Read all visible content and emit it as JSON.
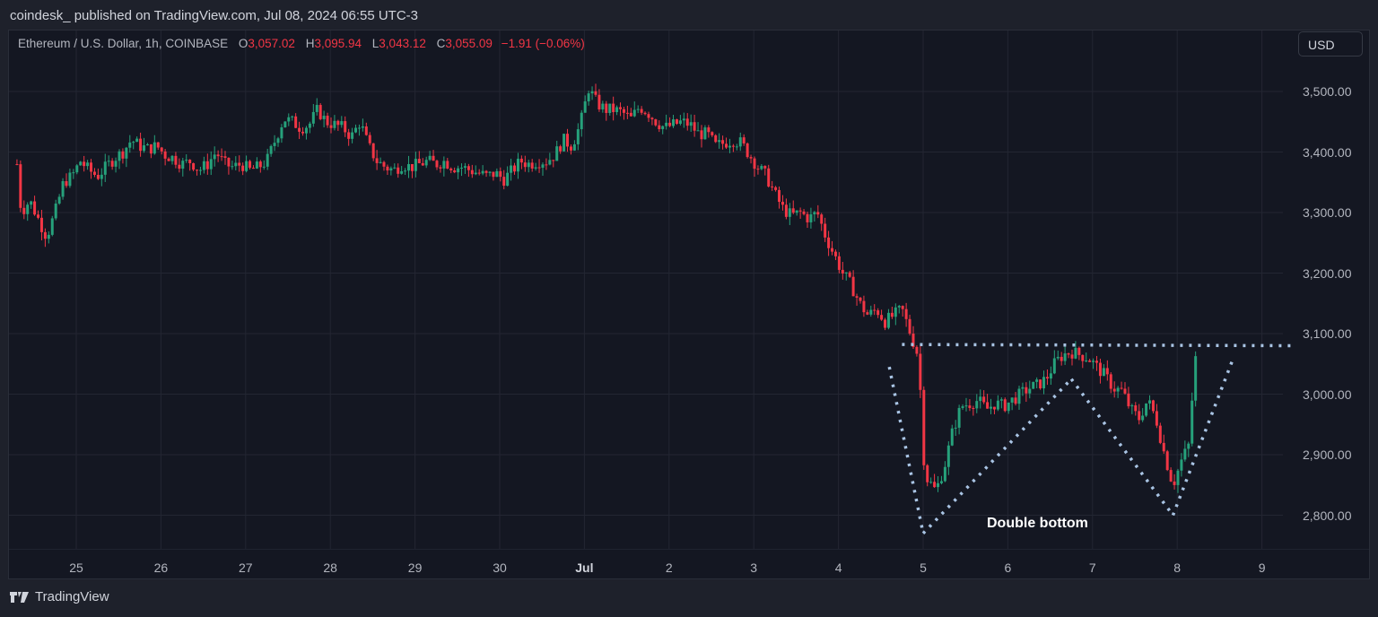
{
  "header": {
    "publish_line": "coindesk_ published on TradingView.com, Jul 08, 2024 06:55 UTC-3"
  },
  "legend": {
    "symbol": "Ethereum / U.S. Dollar, 1h, COINBASE",
    "o_label": "O",
    "o": "3,057.02",
    "h_label": "H",
    "h": "3,095.94",
    "l_label": "L",
    "l": "3,043.12",
    "c_label": "C",
    "c": "3,055.09",
    "change": "−1.91 (−0.06%)"
  },
  "currency_button": "USD",
  "footer": {
    "brand": "TradingView"
  },
  "colors": {
    "up": "#26a17b",
    "down": "#f23645",
    "grid": "#232632",
    "annotation": "#a9c4e4",
    "bg": "#141722"
  },
  "chart_data": {
    "type": "candlestick",
    "title": "Ethereum / U.S. Dollar, 1h, COINBASE",
    "xlabel": "",
    "ylabel": "USD",
    "ylim": [
      2740,
      3560
    ],
    "y_ticks": [
      "3,500.00",
      "3,400.00",
      "3,300.00",
      "3,200.00",
      "3,100.00",
      "3,000.00",
      "2,900.00",
      "2,800.00"
    ],
    "y_tick_values": [
      3500,
      3400,
      3300,
      3200,
      3100,
      3000,
      2900,
      2800
    ],
    "x_ticks": [
      {
        "label": "25",
        "day": 25
      },
      {
        "label": "26",
        "day": 26
      },
      {
        "label": "27",
        "day": 27
      },
      {
        "label": "28",
        "day": 28
      },
      {
        "label": "29",
        "day": 29
      },
      {
        "label": "30",
        "day": 30
      },
      {
        "label": "Jul",
        "day": 31,
        "bold": true
      },
      {
        "label": "2",
        "day": 32
      },
      {
        "label": "3",
        "day": 33
      },
      {
        "label": "4",
        "day": 34
      },
      {
        "label": "5",
        "day": 35
      },
      {
        "label": "6",
        "day": 36
      },
      {
        "label": "7",
        "day": 37
      },
      {
        "label": "8",
        "day": 38
      },
      {
        "label": "9",
        "day": 39
      }
    ],
    "grid": true,
    "close_path": [
      [
        24.3,
        3380
      ],
      [
        24.35,
        3300
      ],
      [
        24.45,
        3320
      ],
      [
        24.55,
        3290
      ],
      [
        24.65,
        3260
      ],
      [
        24.75,
        3300
      ],
      [
        24.85,
        3350
      ],
      [
        24.95,
        3360
      ],
      [
        25.05,
        3385
      ],
      [
        25.15,
        3370
      ],
      [
        25.25,
        3360
      ],
      [
        25.35,
        3375
      ],
      [
        25.45,
        3390
      ],
      [
        25.55,
        3400
      ],
      [
        25.65,
        3420
      ],
      [
        25.75,
        3410
      ],
      [
        25.85,
        3405
      ],
      [
        25.95,
        3410
      ],
      [
        26.05,
        3395
      ],
      [
        26.15,
        3390
      ],
      [
        26.25,
        3380
      ],
      [
        26.35,
        3385
      ],
      [
        26.45,
        3370
      ],
      [
        26.55,
        3380
      ],
      [
        26.65,
        3400
      ],
      [
        26.75,
        3380
      ],
      [
        26.85,
        3375
      ],
      [
        26.95,
        3380
      ],
      [
        27.05,
        3370
      ],
      [
        27.15,
        3375
      ],
      [
        27.25,
        3385
      ],
      [
        27.35,
        3420
      ],
      [
        27.45,
        3455
      ],
      [
        27.55,
        3450
      ],
      [
        27.65,
        3440
      ],
      [
        27.75,
        3445
      ],
      [
        27.85,
        3470
      ],
      [
        27.95,
        3450
      ],
      [
        28.05,
        3445
      ],
      [
        28.15,
        3440
      ],
      [
        28.25,
        3425
      ],
      [
        28.35,
        3450
      ],
      [
        28.45,
        3410
      ],
      [
        28.55,
        3385
      ],
      [
        28.65,
        3375
      ],
      [
        28.75,
        3370
      ],
      [
        28.85,
        3380
      ],
      [
        28.95,
        3375
      ],
      [
        29.05,
        3380
      ],
      [
        29.15,
        3385
      ],
      [
        29.25,
        3380
      ],
      [
        29.35,
        3385
      ],
      [
        29.45,
        3375
      ],
      [
        29.55,
        3375
      ],
      [
        29.65,
        3370
      ],
      [
        29.75,
        3365
      ],
      [
        29.85,
        3360
      ],
      [
        29.95,
        3365
      ],
      [
        30.05,
        3355
      ],
      [
        30.15,
        3370
      ],
      [
        30.25,
        3385
      ],
      [
        30.35,
        3380
      ],
      [
        30.45,
        3385
      ],
      [
        30.55,
        3385
      ],
      [
        30.65,
        3395
      ],
      [
        30.75,
        3420
      ],
      [
        30.85,
        3410
      ],
      [
        30.95,
        3445
      ],
      [
        31.05,
        3505
      ],
      [
        31.15,
        3480
      ],
      [
        31.25,
        3470
      ],
      [
        31.35,
        3470
      ],
      [
        31.45,
        3465
      ],
      [
        31.55,
        3455
      ],
      [
        31.65,
        3475
      ],
      [
        31.75,
        3465
      ],
      [
        31.85,
        3450
      ],
      [
        31.95,
        3440
      ],
      [
        32.05,
        3445
      ],
      [
        32.15,
        3450
      ],
      [
        32.25,
        3445
      ],
      [
        32.35,
        3430
      ],
      [
        32.45,
        3430
      ],
      [
        32.55,
        3410
      ],
      [
        32.65,
        3415
      ],
      [
        32.75,
        3420
      ],
      [
        32.85,
        3415
      ],
      [
        32.95,
        3395
      ],
      [
        33.05,
        3375
      ],
      [
        33.15,
        3360
      ],
      [
        33.25,
        3330
      ],
      [
        33.35,
        3305
      ],
      [
        33.45,
        3295
      ],
      [
        33.55,
        3300
      ],
      [
        33.65,
        3290
      ],
      [
        33.75,
        3300
      ],
      [
        33.85,
        3260
      ],
      [
        33.95,
        3230
      ],
      [
        34.05,
        3200
      ],
      [
        34.15,
        3180
      ],
      [
        34.25,
        3150
      ],
      [
        34.35,
        3130
      ],
      [
        34.45,
        3140
      ],
      [
        34.55,
        3120
      ],
      [
        34.65,
        3130
      ],
      [
        34.75,
        3140
      ],
      [
        34.85,
        3100
      ],
      [
        34.95,
        3060
      ],
      [
        35.0,
        2900
      ],
      [
        35.05,
        2860
      ],
      [
        35.15,
        2840
      ],
      [
        35.25,
        2880
      ],
      [
        35.35,
        2940
      ],
      [
        35.45,
        2980
      ],
      [
        35.55,
        2985
      ],
      [
        35.65,
        2990
      ],
      [
        35.75,
        2975
      ],
      [
        35.85,
        2985
      ],
      [
        35.95,
        2980
      ],
      [
        36.05,
        2990
      ],
      [
        36.15,
        3000
      ],
      [
        36.25,
        3010
      ],
      [
        36.35,
        3015
      ],
      [
        36.45,
        3025
      ],
      [
        36.55,
        3050
      ],
      [
        36.65,
        3065
      ],
      [
        36.75,
        3070
      ],
      [
        36.85,
        3065
      ],
      [
        36.95,
        3060
      ],
      [
        37.05,
        3045
      ],
      [
        37.15,
        3030
      ],
      [
        37.25,
        3010
      ],
      [
        37.35,
        3005
      ],
      [
        37.45,
        2975
      ],
      [
        37.55,
        2960
      ],
      [
        37.65,
        2990
      ],
      [
        37.75,
        2960
      ],
      [
        37.85,
        2900
      ],
      [
        37.95,
        2850
      ],
      [
        38.05,
        2890
      ],
      [
        38.15,
        2920
      ],
      [
        38.2,
        3060
      ],
      [
        38.25,
        3055
      ]
    ]
  },
  "annotations": {
    "label": "Double bottom",
    "resistance_line": {
      "from": [
        34.75,
        3082
      ],
      "to": [
        39.36,
        3080
      ]
    },
    "pattern_lines": [
      [
        [
          34.6,
          3045
        ],
        [
          35.0,
          2770
        ]
      ],
      [
        [
          35.0,
          2770
        ],
        [
          36.75,
          3025
        ]
      ],
      [
        [
          36.75,
          3025
        ],
        [
          37.95,
          2800
        ]
      ],
      [
        [
          37.95,
          2800
        ],
        [
          38.65,
          3055
        ]
      ]
    ]
  }
}
